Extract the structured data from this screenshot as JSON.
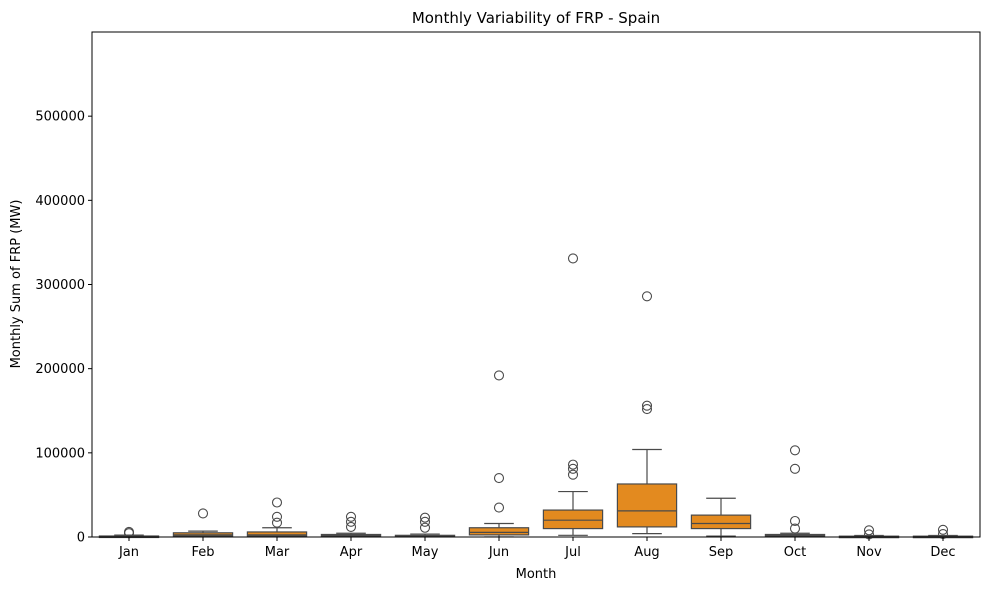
{
  "chart_data": {
    "type": "box",
    "title": "Monthly Variability of FRP - Spain",
    "xlabel": "Month",
    "ylabel": "Monthly Sum of FRP (MW)",
    "ylim": [
      0,
      600000
    ],
    "yticks": [
      0,
      100000,
      200000,
      300000,
      400000,
      500000
    ],
    "ytick_labels": [
      "0",
      "100000",
      "200000",
      "300000",
      "400000",
      "500000"
    ],
    "grid": false,
    "legend": "none",
    "box_color": "#e38a1f",
    "line_color": "#4a4a4a",
    "categories": [
      "Jan",
      "Feb",
      "Mar",
      "Apr",
      "May",
      "Jun",
      "Jul",
      "Aug",
      "Sep",
      "Oct",
      "Nov",
      "Dec"
    ],
    "boxes": [
      {
        "month": "Jan",
        "whislo": 0,
        "q1": 200,
        "med": 600,
        "q3": 1200,
        "whishi": 2200,
        "fliers": [
          4500,
          6000
        ]
      },
      {
        "month": "Feb",
        "whislo": 100,
        "q1": 1000,
        "med": 2500,
        "q3": 5000,
        "whishi": 7000,
        "fliers": [
          28000
        ]
      },
      {
        "month": "Mar",
        "whislo": 100,
        "q1": 1000,
        "med": 2500,
        "q3": 6000,
        "whishi": 11000,
        "fliers": [
          17000,
          24000,
          41000
        ]
      },
      {
        "month": "Apr",
        "whislo": 100,
        "q1": 800,
        "med": 1800,
        "q3": 3000,
        "whishi": 4500,
        "fliers": [
          12000,
          18000,
          24000
        ]
      },
      {
        "month": "May",
        "whislo": 100,
        "q1": 500,
        "med": 1000,
        "q3": 2000,
        "whishi": 3500,
        "fliers": [
          11000,
          18000,
          23000
        ]
      },
      {
        "month": "Jun",
        "whislo": 100,
        "q1": 2500,
        "med": 5500,
        "q3": 11000,
        "whishi": 16000,
        "fliers": [
          35000,
          70000,
          192000
        ]
      },
      {
        "month": "Jul",
        "whislo": 2000,
        "q1": 10000,
        "med": 20000,
        "q3": 32000,
        "whishi": 54000,
        "fliers": [
          74000,
          81000,
          86000,
          331000
        ]
      },
      {
        "month": "Aug",
        "whislo": 4000,
        "q1": 12000,
        "med": 31000,
        "q3": 63000,
        "whishi": 104000,
        "fliers": [
          152000,
          156000,
          286000
        ]
      },
      {
        "month": "Sep",
        "whislo": 1000,
        "q1": 10000,
        "med": 16000,
        "q3": 26000,
        "whishi": 46000,
        "fliers": []
      },
      {
        "month": "Oct",
        "whislo": 100,
        "q1": 800,
        "med": 1800,
        "q3": 3000,
        "whishi": 4500,
        "fliers": [
          10000,
          19000,
          81000,
          103000
        ]
      },
      {
        "month": "Nov",
        "whislo": 0,
        "q1": 200,
        "med": 500,
        "q3": 1000,
        "whishi": 1800,
        "fliers": [
          3000,
          8000
        ]
      },
      {
        "month": "Dec",
        "whislo": 0,
        "q1": 200,
        "med": 500,
        "q3": 1000,
        "whishi": 1800,
        "fliers": [
          3500,
          8500
        ]
      }
    ]
  }
}
